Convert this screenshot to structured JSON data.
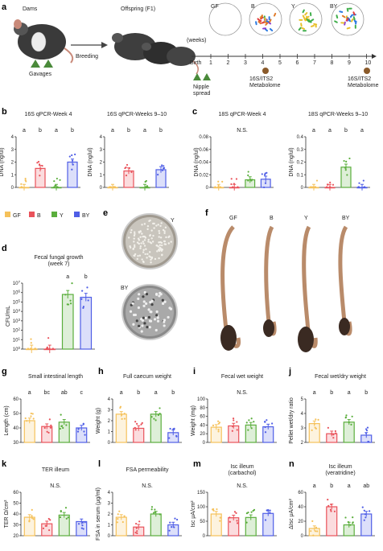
{
  "panel_letters": [
    "a",
    "b",
    "c",
    "d",
    "e",
    "f",
    "g",
    "h",
    "i",
    "j",
    "k",
    "l",
    "m",
    "n"
  ],
  "colors": {
    "GF": "#f5c15a",
    "B": "#e9525a",
    "Y": "#5aae3c",
    "BY": "#4f5ee6"
  },
  "legend": {
    "items": [
      {
        "key": "GF",
        "label": "GF"
      },
      {
        "key": "B",
        "label": "B"
      },
      {
        "key": "Y",
        "label": "Y"
      },
      {
        "key": "BY",
        "label": "BY"
      }
    ]
  },
  "panel_a": {
    "dams_label": "Dams",
    "gavages_label": "Gavages",
    "breeding_label": "Breeding",
    "offspring_label": "Offspring (F1)",
    "groups": [
      "GF",
      "B",
      "Y",
      "BY"
    ],
    "weeks_label": "(weeks)",
    "birth_label": "Birth",
    "timeline_ticks": [
      "1",
      "2",
      "3",
      "4",
      "5",
      "6",
      "7",
      "8",
      "9",
      "10"
    ],
    "nipple_label": "Nipple\nspread",
    "sample1_label": "16S/ITS2\nMetabolome",
    "sample2_label": "16S/ITS2\nMetabolome"
  },
  "panel_e": {
    "plate1_label": "Y",
    "plate2_label": "BY"
  },
  "panel_f": {
    "labels": [
      "GF",
      "B",
      "Y",
      "BY"
    ]
  },
  "chart_data": [
    {
      "id": "b1",
      "type": "bar",
      "title": "16S qPCR-Week 4",
      "ylabel": "DNA (ng/ul)",
      "categories": [
        "GF",
        "B",
        "Y",
        "BY"
      ],
      "values": [
        0.0,
        1.5,
        0.0,
        2.0
      ],
      "ylim": [
        0,
        4
      ],
      "yticks": [
        0,
        1,
        2,
        3,
        4
      ],
      "letters": [
        "a",
        "b",
        "a",
        "b"
      ]
    },
    {
      "id": "b2",
      "type": "bar",
      "title": "16S qPCR-Weeks 9–10",
      "ylabel": "DNA (ng/ul)",
      "categories": [
        "GF",
        "B",
        "Y",
        "BY"
      ],
      "values": [
        0.0,
        1.3,
        0.0,
        1.4
      ],
      "ylim": [
        0,
        4
      ],
      "yticks": [
        0,
        1,
        2,
        3,
        4
      ],
      "letters": [
        "a",
        "b",
        "a",
        "b"
      ]
    },
    {
      "id": "c1",
      "type": "bar",
      "title": "18S qPCR-Week 4",
      "ylabel": "DNA (ng/ul)",
      "categories": [
        "GF",
        "B",
        "Y",
        "BY"
      ],
      "values": [
        0.0,
        0.0,
        0.012,
        0.013
      ],
      "ylim": [
        0,
        0.08
      ],
      "yticks": [
        0,
        0.02,
        0.04,
        0.06,
        0.08
      ],
      "letters": [],
      "note": "N.S."
    },
    {
      "id": "c2",
      "type": "bar",
      "title": "18S qPCR-Weeks 9–10",
      "ylabel": "DNA (ng/ul)",
      "categories": [
        "GF",
        "B",
        "Y",
        "BY"
      ],
      "values": [
        0.0,
        0.0,
        0.16,
        0.0
      ],
      "ylim": [
        0,
        0.4
      ],
      "yticks": [
        0,
        0.1,
        0.2,
        0.3,
        0.4
      ],
      "letters": [
        "a",
        "a",
        "b",
        "a"
      ]
    },
    {
      "id": "d",
      "type": "bar",
      "title": "Fecal fungal growth\n(week 7)",
      "ylabel": "CFU/mL",
      "categories": [
        "GF",
        "B",
        "Y",
        "BY"
      ],
      "values": [
        0,
        0,
        5.8,
        5.5
      ],
      "log": true,
      "ylim": [
        0,
        7
      ],
      "yticks": [
        "10^0",
        "10^1",
        "10^2",
        "10^3",
        "10^4",
        "10^5",
        "10^6",
        "10^7"
      ],
      "letters": [
        "",
        "",
        "a",
        "b"
      ]
    },
    {
      "id": "g",
      "type": "bar",
      "title": "Small intestinal length",
      "ylabel": "Length (cm)",
      "categories": [
        "GF",
        "B",
        "Y",
        "BY"
      ],
      "values": [
        45,
        41,
        44,
        40
      ],
      "ylim": [
        30,
        60
      ],
      "yticks": [
        30,
        40,
        50,
        60
      ],
      "letters": [
        "a",
        "bc",
        "ab",
        "c"
      ]
    },
    {
      "id": "h",
      "type": "bar",
      "title": "Full caecum weight",
      "ylabel": "Weight (g)",
      "categories": [
        "GF",
        "B",
        "Y",
        "BY"
      ],
      "values": [
        2.6,
        1.3,
        2.6,
        0.9
      ],
      "ylim": [
        0,
        4
      ],
      "yticks": [
        0,
        1,
        2,
        3,
        4
      ],
      "letters": [
        "a",
        "b",
        "a",
        "b"
      ]
    },
    {
      "id": "i",
      "type": "bar",
      "title": "Fecal wet weight",
      "ylabel": "Weight (mg)",
      "categories": [
        "GF",
        "B",
        "Y",
        "BY"
      ],
      "values": [
        35,
        38,
        40,
        36
      ],
      "ylim": [
        0,
        100
      ],
      "yticks": [
        0,
        20,
        40,
        60,
        80,
        100
      ],
      "letters": [],
      "note": "N.S."
    },
    {
      "id": "j",
      "type": "bar",
      "title": "Fecal wet/dry weight",
      "ylabel": "Pellet wet/dry ratio",
      "categories": [
        "GF",
        "B",
        "Y",
        "BY"
      ],
      "values": [
        3.3,
        2.6,
        3.4,
        2.5
      ],
      "ylim": [
        2,
        5
      ],
      "yticks": [
        2,
        3,
        4,
        5
      ],
      "letters": [
        "a",
        "b",
        "a",
        "b"
      ]
    },
    {
      "id": "k",
      "type": "bar",
      "title": "TER illeum",
      "ylabel": "TER Ω/cm²",
      "categories": [
        "GF",
        "B",
        "Y",
        "BY"
      ],
      "values": [
        37,
        31,
        39,
        33
      ],
      "ylim": [
        20,
        60
      ],
      "yticks": [
        20,
        30,
        40,
        50,
        60
      ],
      "letters": [],
      "note": "N.S."
    },
    {
      "id": "l",
      "type": "bar",
      "title": "FSA permeability",
      "ylabel": "FSA in serum (μg/ml)",
      "categories": [
        "GF",
        "B",
        "Y",
        "BY"
      ],
      "values": [
        1.7,
        0.8,
        2.0,
        1.0
      ],
      "ylim": [
        0,
        4
      ],
      "yticks": [
        0,
        1,
        2,
        3,
        4
      ],
      "letters": [],
      "note": "N.S."
    },
    {
      "id": "m",
      "type": "bar",
      "title": "Isc illeum\n(carbachol)",
      "ylabel": "Isc μA/cm²",
      "categories": [
        "GF",
        "B",
        "Y",
        "BY"
      ],
      "values": [
        75,
        62,
        63,
        77
      ],
      "ylim": [
        0,
        150
      ],
      "yticks": [
        0,
        50,
        100,
        150
      ],
      "letters": [],
      "note": "N.S."
    },
    {
      "id": "n",
      "type": "bar",
      "title": "Isc illeum\n(veratridine)",
      "ylabel": "ΔIsc μA/cm²",
      "categories": [
        "GF",
        "B",
        "Y",
        "BY"
      ],
      "values": [
        10,
        40,
        15,
        30
      ],
      "ylim": [
        0,
        60
      ],
      "yticks": [
        0,
        20,
        40,
        60
      ],
      "letters": [
        "a",
        "b",
        "a",
        "ab"
      ]
    }
  ]
}
